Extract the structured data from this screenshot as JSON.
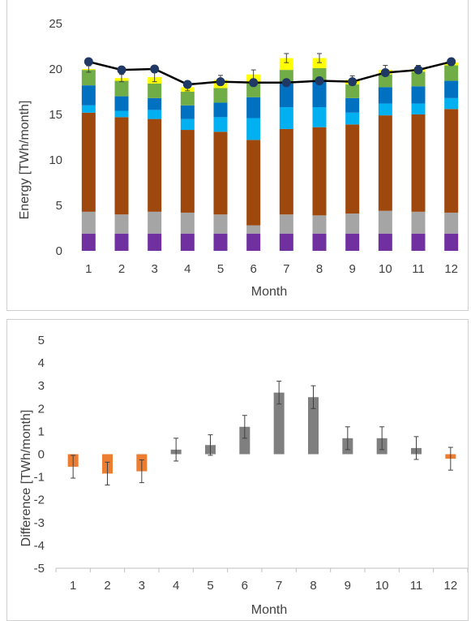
{
  "chart_data": [
    {
      "type": "bar",
      "stacked": true,
      "categories": [
        "1",
        "2",
        "3",
        "4",
        "5",
        "6",
        "7",
        "8",
        "9",
        "10",
        "11",
        "12"
      ],
      "xlabel": "Month",
      "ylabel": "Energy [TWh/month]",
      "ylim": [
        0,
        25
      ],
      "yticks": [
        "0",
        "5",
        "10",
        "15",
        "20",
        "25"
      ],
      "grid": false,
      "legend": "none",
      "series": [
        {
          "color": "#7030a0",
          "values": [
            1.9,
            1.9,
            1.9,
            1.9,
            1.9,
            1.9,
            1.9,
            1.9,
            1.9,
            1.9,
            1.9,
            1.9
          ]
        },
        {
          "color": "#a5a5a5",
          "values": [
            2.4,
            2.1,
            2.4,
            2.3,
            2.1,
            0.9,
            2.1,
            2.0,
            2.2,
            2.5,
            2.4,
            2.3
          ]
        },
        {
          "color": "#9e480e",
          "values": [
            10.9,
            10.7,
            10.2,
            9.1,
            9.1,
            9.4,
            9.4,
            9.7,
            9.8,
            10.5,
            10.7,
            11.4
          ]
        },
        {
          "color": "#00b0f0",
          "values": [
            0.8,
            0.7,
            1.0,
            1.2,
            1.6,
            2.4,
            2.4,
            2.2,
            1.3,
            1.3,
            1.2,
            1.2
          ]
        },
        {
          "color": "#0070c0",
          "values": [
            2.2,
            1.6,
            1.3,
            1.5,
            1.6,
            2.3,
            2.6,
            2.8,
            1.6,
            1.8,
            1.9,
            1.9
          ]
        },
        {
          "color": "#70ad47",
          "values": [
            1.7,
            1.7,
            1.6,
            1.5,
            1.6,
            1.5,
            1.5,
            1.5,
            1.5,
            1.4,
            1.6,
            1.7
          ]
        },
        {
          "color": "#ffff00",
          "values": [
            0.1,
            0.3,
            0.7,
            0.5,
            0.9,
            1.0,
            1.3,
            1.1,
            0.5,
            0.5,
            0.3,
            0.3
          ]
        }
      ],
      "stack_error": [
        0.35,
        0.4,
        0.5,
        0.4,
        0.5,
        0.5,
        0.5,
        0.5,
        0.45,
        0.5,
        0.4,
        0.3
      ],
      "line": {
        "color": "#000000",
        "marker_color": "#203864",
        "values": [
          20.8,
          19.9,
          20.0,
          18.3,
          18.6,
          18.5,
          18.5,
          18.7,
          18.6,
          19.6,
          19.9,
          20.8
        ]
      }
    },
    {
      "type": "bar",
      "categories": [
        "1",
        "2",
        "3",
        "4",
        "5",
        "6",
        "7",
        "8",
        "9",
        "10",
        "11",
        "12"
      ],
      "xlabel": "Month",
      "ylabel": "Difference [TWh/month]",
      "ylim": [
        -5,
        5
      ],
      "yticks": [
        "-5",
        "-4",
        "-3",
        "-2",
        "-1",
        "0",
        "1",
        "2",
        "3",
        "4",
        "5"
      ],
      "grid": false,
      "legend": "none",
      "values": [
        -0.55,
        -0.85,
        -0.75,
        0.2,
        0.4,
        1.2,
        2.7,
        2.5,
        0.7,
        0.7,
        0.27,
        -0.2
      ],
      "errors": [
        0.5,
        0.5,
        0.5,
        0.5,
        0.45,
        0.5,
        0.5,
        0.5,
        0.5,
        0.5,
        0.5,
        0.5
      ],
      "colors": {
        "negative": "#ed7d31",
        "positive": "#7f7f7f"
      }
    }
  ]
}
